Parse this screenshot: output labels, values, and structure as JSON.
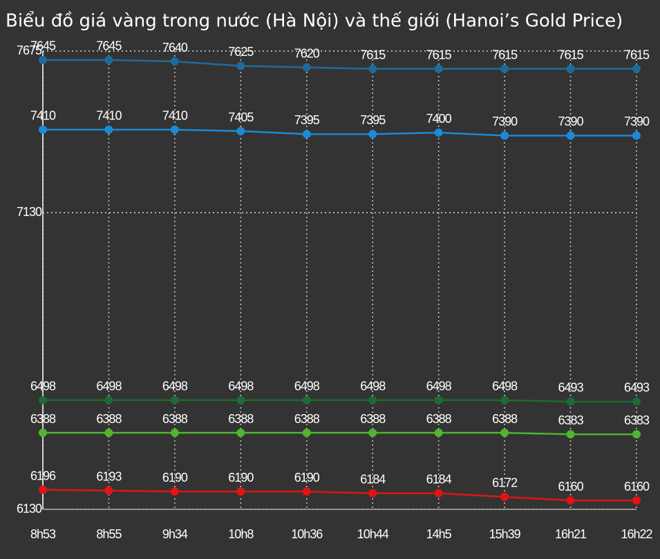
{
  "chart_data": {
    "type": "line",
    "title": "Biểu đồ giá vàng trong nước (Hà Nội) và thế giới (Hanoi’s Gold Price)",
    "categories": [
      "8h53",
      "8h55",
      "9h34",
      "10h8",
      "10h36",
      "10h44",
      "14h5",
      "15h39",
      "16h21",
      "16h22"
    ],
    "series": [
      {
        "color": "#1f6a9c",
        "values": [
          7645,
          7645,
          7640,
          7625,
          7620,
          7615,
          7615,
          7615,
          7615,
          7615
        ]
      },
      {
        "color": "#1a8bd6",
        "values": [
          7410,
          7410,
          7410,
          7405,
          7395,
          7395,
          7400,
          7390,
          7390,
          7390
        ]
      },
      {
        "color": "#1d6b35",
        "values": [
          6498,
          6498,
          6498,
          6498,
          6498,
          6498,
          6498,
          6498,
          6493,
          6493
        ]
      },
      {
        "color": "#4fb62f",
        "values": [
          6388,
          6388,
          6388,
          6388,
          6388,
          6388,
          6388,
          6388,
          6383,
          6383
        ]
      },
      {
        "color": "#e11414",
        "values": [
          6196,
          6193,
          6190,
          6190,
          6190,
          6184,
          6184,
          6172,
          6160,
          6160
        ]
      }
    ],
    "ylim": [
      6130,
      7675
    ],
    "yticks": [
      6130,
      7130,
      7675
    ],
    "grid": true
  }
}
